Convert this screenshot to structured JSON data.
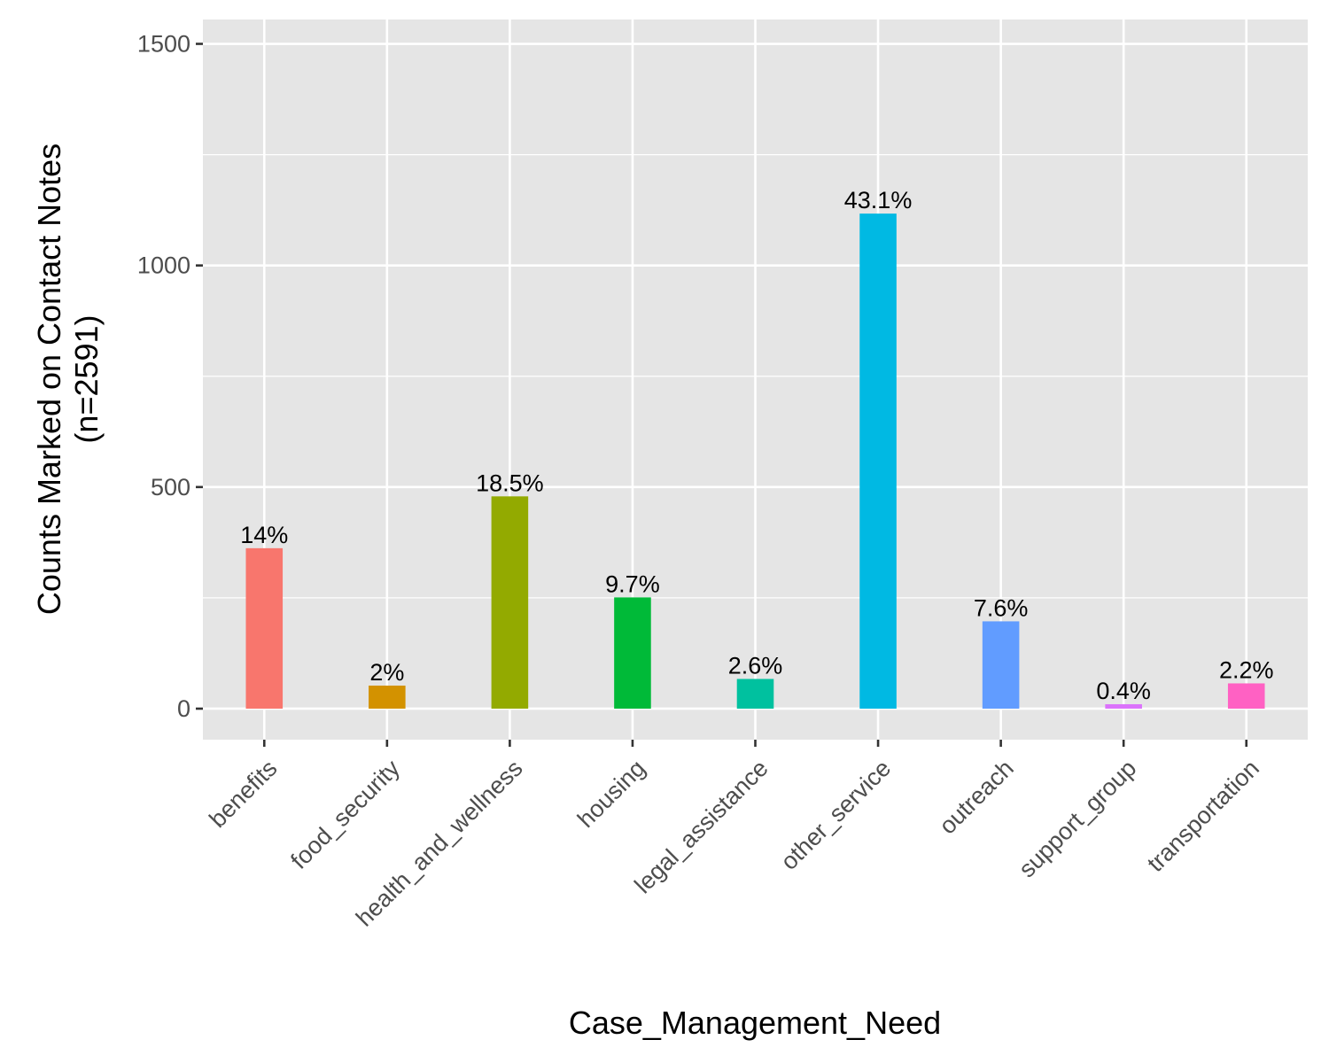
{
  "chart_data": {
    "type": "bar",
    "xlabel": "Case_Management_Need",
    "ylabel_lines": [
      "Counts Marked on Contact Notes",
      "(n=2591)"
    ],
    "categories": [
      "benefits",
      "food_security",
      "health_and_wellness",
      "housing",
      "legal_assistance",
      "other_service",
      "outreach",
      "support_group",
      "transportation"
    ],
    "values": [
      362,
      52,
      479,
      251,
      67,
      1117,
      197,
      10,
      57
    ],
    "data_labels": [
      "14%",
      "2%",
      "18.5%",
      "9.7%",
      "2.6%",
      "43.1%",
      "7.6%",
      "0.4%",
      "2.2%"
    ],
    "colors": [
      "#F8766D",
      "#D39200",
      "#93AA00",
      "#00BA38",
      "#00C19F",
      "#00B9E3",
      "#619CFF",
      "#DB72FB",
      "#FF61C3"
    ],
    "yticks": [
      0,
      500,
      1000,
      1500
    ],
    "ylim": [
      -70,
      1555
    ],
    "grid": true,
    "panel_background": "#E5E5E5",
    "grid_color": "#FFFFFF",
    "legend": "none"
  }
}
